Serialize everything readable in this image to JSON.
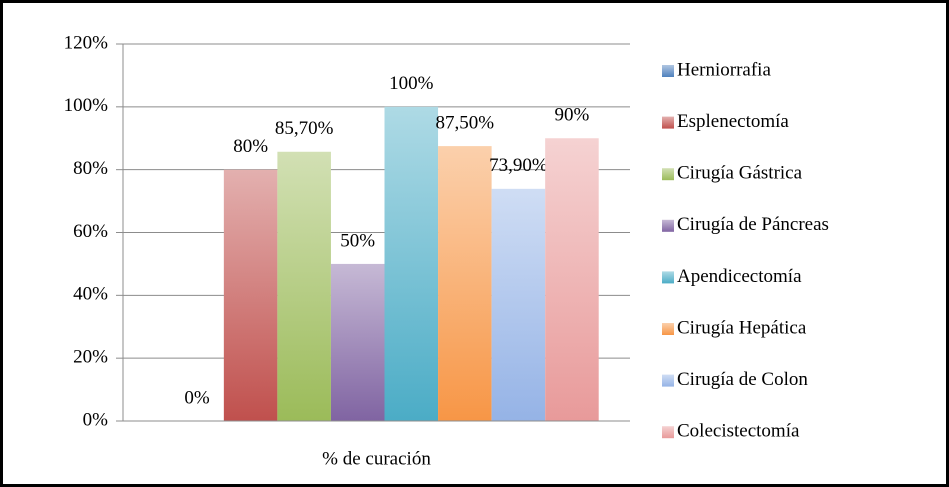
{
  "chart_data": {
    "type": "bar",
    "categories": [
      "% de curación"
    ],
    "series": [
      {
        "name": "Herniorrafia",
        "color": "#4f81bd",
        "values": [
          0
        ],
        "value_labels": [
          "0%"
        ]
      },
      {
        "name": "Esplenectomía",
        "color": "#c0504d",
        "values": [
          80
        ],
        "value_labels": [
          "80%"
        ]
      },
      {
        "name": "Cirugía Gástrica",
        "color": "#9bbb59",
        "values": [
          85.7
        ],
        "value_labels": [
          "85,70%"
        ]
      },
      {
        "name": "Cirugía de Páncreas",
        "color": "#8064a2",
        "values": [
          50
        ],
        "value_labels": [
          "50%"
        ]
      },
      {
        "name": "Apendicectomía",
        "color": "#4bacc6",
        "values": [
          100
        ],
        "value_labels": [
          "100%"
        ]
      },
      {
        "name": "Cirugía Hepática",
        "color": "#f79646",
        "values": [
          87.5
        ],
        "value_labels": [
          "87,50%"
        ]
      },
      {
        "name": "Cirugía de Colon",
        "color": "#95b3e6",
        "values": [
          73.9
        ],
        "value_labels": [
          "73,90%"
        ]
      },
      {
        "name": "Colecistectomía",
        "color": "#e89a9a",
        "values": [
          90
        ],
        "value_labels": [
          "90%"
        ]
      }
    ],
    "ylim": [
      0,
      120
    ],
    "yticks": [
      {
        "value": 0,
        "label": "0%"
      },
      {
        "value": 20,
        "label": "20%"
      },
      {
        "value": 40,
        "label": "40%"
      },
      {
        "value": 60,
        "label": "60%"
      },
      {
        "value": 80,
        "label": "80%"
      },
      {
        "value": 100,
        "label": "100%"
      },
      {
        "value": 120,
        "label": "120%"
      }
    ],
    "grid": true,
    "legend": "right"
  }
}
